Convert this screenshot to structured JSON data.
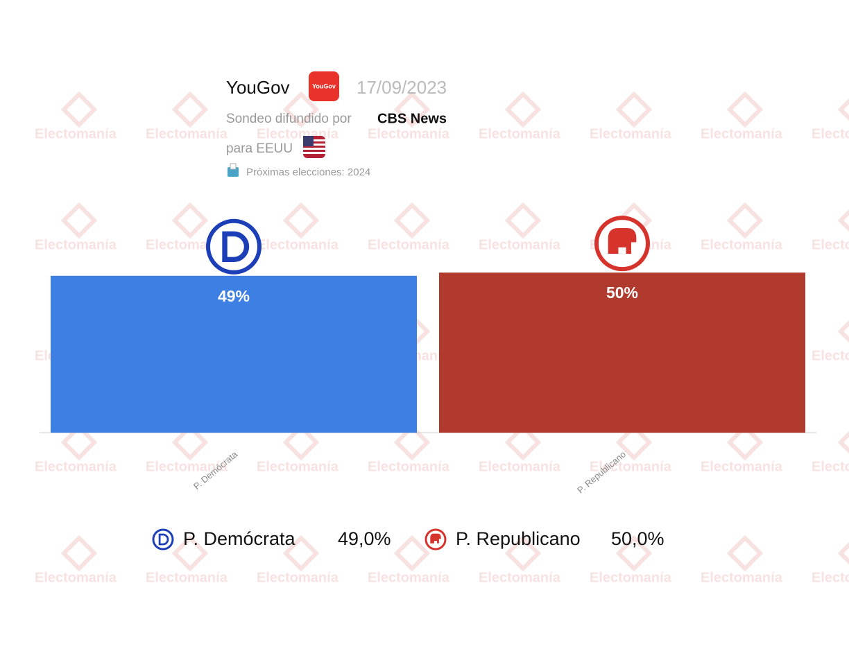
{
  "watermark": "Electomanía",
  "header": {
    "pollster": "YouGov",
    "logo_text": "YouGov",
    "date": "17/09/2023",
    "published_by_label": "Sondeo difundido por",
    "published_by": "CBS News",
    "region": "para EEUU",
    "next_election": "Próximas elecciones: 2024"
  },
  "chart_data": {
    "type": "bar",
    "categories": [
      "P. Demócrata",
      "P. Republicano"
    ],
    "values": [
      49,
      50
    ],
    "value_labels": [
      "49%",
      "50%"
    ],
    "legend_value_labels": [
      "49,0%",
      "50,0%"
    ],
    "colors": [
      "#3d7fe3",
      "#b03a2e"
    ],
    "ylim": [
      0,
      60
    ]
  }
}
